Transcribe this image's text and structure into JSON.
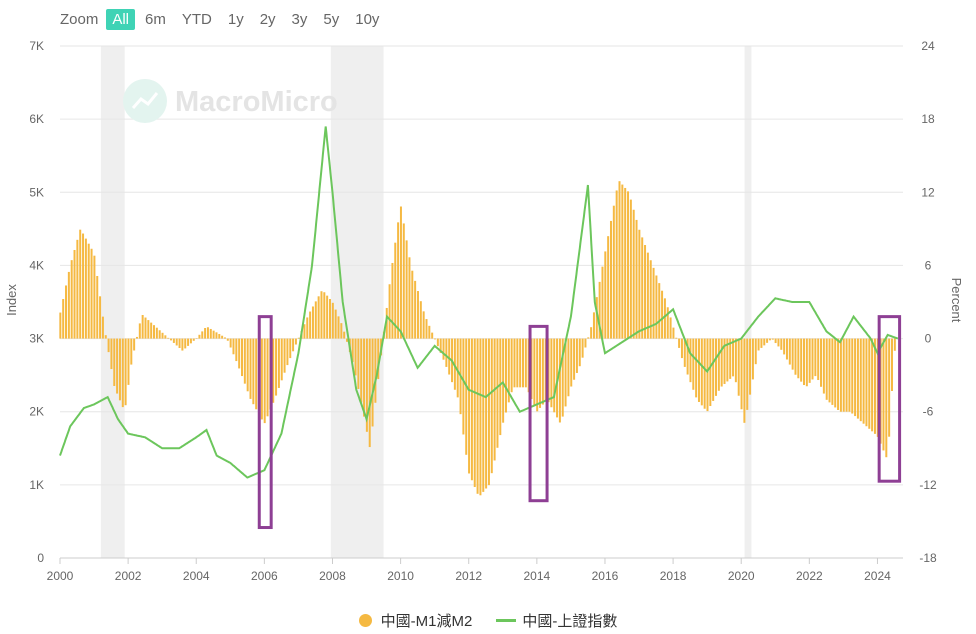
{
  "zoom": {
    "label": "Zoom",
    "buttons": [
      "All",
      "6m",
      "YTD",
      "1y",
      "2y",
      "3y",
      "5y",
      "10y"
    ],
    "active": "All"
  },
  "watermark": "MacroMicro",
  "legend": {
    "m1m2": "中國-M1減M2",
    "index": "中國-上證指數"
  },
  "colors": {
    "bars": "#f5b942",
    "line": "#6cc65c",
    "highlight": "#8e3f94",
    "recession": "#efefef",
    "zoom_active": "#3fd3b5"
  },
  "chart_data": {
    "type": "bar+line",
    "xlim": [
      2000,
      2024.75
    ],
    "x_ticks": [
      "2000",
      "2002",
      "2004",
      "2006",
      "2008",
      "2010",
      "2012",
      "2014",
      "2016",
      "2018",
      "2020",
      "2022",
      "2024"
    ],
    "left_axis": {
      "title": "Index",
      "ylim": [
        0,
        7000
      ],
      "ticks": [
        "0",
        "1K",
        "2K",
        "3K",
        "4K",
        "5K",
        "6K",
        "7K"
      ]
    },
    "right_axis": {
      "title": "Percent",
      "ylim": [
        -18,
        24
      ],
      "ticks": [
        "-18",
        "-12",
        "-6",
        "0",
        "6",
        "12",
        "18",
        "24"
      ]
    },
    "shaded_periods": [
      [
        2001.2,
        2001.9
      ],
      [
        2007.95,
        2009.5
      ],
      [
        2020.1,
        2020.3
      ]
    ],
    "highlight_boxes": [
      {
        "x": [
          2005.85,
          2006.2
        ],
        "pct": [
          -15.5,
          1.8
        ]
      },
      {
        "x": [
          2013.8,
          2014.3
        ],
        "pct": [
          -13.3,
          1.0
        ]
      },
      {
        "x": [
          2024.05,
          2024.65
        ],
        "pct": [
          -11.7,
          1.8
        ]
      }
    ],
    "m1m2": [
      [
        2000,
        2
      ],
      [
        2000.3,
        6
      ],
      [
        2000.6,
        9
      ],
      [
        2001,
        7
      ],
      [
        2001.3,
        1
      ],
      [
        2001.6,
        -4
      ],
      [
        2001.9,
        -6
      ],
      [
        2002.1,
        -2
      ],
      [
        2002.4,
        2
      ],
      [
        2002.8,
        1
      ],
      [
        2003.2,
        0
      ],
      [
        2003.6,
        -1
      ],
      [
        2004,
        0
      ],
      [
        2004.3,
        1
      ],
      [
        2004.6,
        0.5
      ],
      [
        2004.9,
        0
      ],
      [
        2005.2,
        -2
      ],
      [
        2005.6,
        -5
      ],
      [
        2006,
        -7
      ],
      [
        2006.3,
        -5
      ],
      [
        2006.7,
        -2
      ],
      [
        2007,
        0
      ],
      [
        2007.3,
        2
      ],
      [
        2007.7,
        4
      ],
      [
        2008,
        3
      ],
      [
        2008.3,
        1
      ],
      [
        2008.6,
        -2
      ],
      [
        2008.9,
        -6
      ],
      [
        2009.1,
        -9
      ],
      [
        2009.4,
        -2
      ],
      [
        2009.7,
        5
      ],
      [
        2010,
        11
      ],
      [
        2010.3,
        6
      ],
      [
        2010.7,
        2
      ],
      [
        2011,
        0
      ],
      [
        2011.3,
        -2
      ],
      [
        2011.7,
        -5
      ],
      [
        2012,
        -11
      ],
      [
        2012.3,
        -13
      ],
      [
        2012.6,
        -12
      ],
      [
        2013,
        -7
      ],
      [
        2013.3,
        -4
      ],
      [
        2013.7,
        -4
      ],
      [
        2014,
        -6
      ],
      [
        2014.3,
        -5
      ],
      [
        2014.7,
        -7
      ],
      [
        2015,
        -4
      ],
      [
        2015.3,
        -2
      ],
      [
        2015.6,
        1
      ],
      [
        2016,
        7
      ],
      [
        2016.4,
        13
      ],
      [
        2016.7,
        12
      ],
      [
        2017,
        9
      ],
      [
        2017.4,
        6
      ],
      [
        2017.8,
        3
      ],
      [
        2018,
        1
      ],
      [
        2018.3,
        -2
      ],
      [
        2018.7,
        -5
      ],
      [
        2019,
        -6
      ],
      [
        2019.4,
        -4
      ],
      [
        2019.8,
        -3
      ],
      [
        2020.1,
        -7
      ],
      [
        2020.5,
        -1
      ],
      [
        2020.9,
        0
      ],
      [
        2021.2,
        -1
      ],
      [
        2021.6,
        -3
      ],
      [
        2021.9,
        -4
      ],
      [
        2022.2,
        -3
      ],
      [
        2022.5,
        -5
      ],
      [
        2022.9,
        -6
      ],
      [
        2023.2,
        -6
      ],
      [
        2023.6,
        -7
      ],
      [
        2024,
        -8
      ],
      [
        2024.3,
        -10
      ],
      [
        2024.5,
        -1
      ]
    ],
    "index": [
      [
        2000,
        1400
      ],
      [
        2000.3,
        1800
      ],
      [
        2000.7,
        2050
      ],
      [
        2001,
        2100
      ],
      [
        2001.4,
        2200
      ],
      [
        2001.7,
        1900
      ],
      [
        2002,
        1700
      ],
      [
        2002.5,
        1650
      ],
      [
        2003,
        1500
      ],
      [
        2003.5,
        1500
      ],
      [
        2004,
        1650
      ],
      [
        2004.3,
        1750
      ],
      [
        2004.6,
        1400
      ],
      [
        2005,
        1300
      ],
      [
        2005.5,
        1100
      ],
      [
        2006,
        1200
      ],
      [
        2006.5,
        1700
      ],
      [
        2007,
        2800
      ],
      [
        2007.4,
        4000
      ],
      [
        2007.8,
        5900
      ],
      [
        2008,
        5000
      ],
      [
        2008.3,
        3500
      ],
      [
        2008.7,
        2300
      ],
      [
        2009,
        1900
      ],
      [
        2009.3,
        2500
      ],
      [
        2009.6,
        3300
      ],
      [
        2010,
        3100
      ],
      [
        2010.5,
        2600
      ],
      [
        2011,
        2900
      ],
      [
        2011.5,
        2700
      ],
      [
        2012,
        2300
      ],
      [
        2012.5,
        2200
      ],
      [
        2013,
        2400
      ],
      [
        2013.5,
        2000
      ],
      [
        2014,
        2100
      ],
      [
        2014.5,
        2200
      ],
      [
        2015,
        3300
      ],
      [
        2015.5,
        5100
      ],
      [
        2015.7,
        3500
      ],
      [
        2016,
        2800
      ],
      [
        2016.5,
        2950
      ],
      [
        2017,
        3100
      ],
      [
        2017.5,
        3200
      ],
      [
        2018,
        3400
      ],
      [
        2018.5,
        2800
      ],
      [
        2019,
        2550
      ],
      [
        2019.5,
        2900
      ],
      [
        2020,
        3000
      ],
      [
        2020.5,
        3300
      ],
      [
        2021,
        3550
      ],
      [
        2021.5,
        3500
      ],
      [
        2022,
        3500
      ],
      [
        2022.5,
        3100
      ],
      [
        2022.9,
        2950
      ],
      [
        2023.3,
        3300
      ],
      [
        2023.8,
        3000
      ],
      [
        2024,
        2800
      ],
      [
        2024.3,
        3050
      ],
      [
        2024.6,
        3000
      ]
    ]
  }
}
